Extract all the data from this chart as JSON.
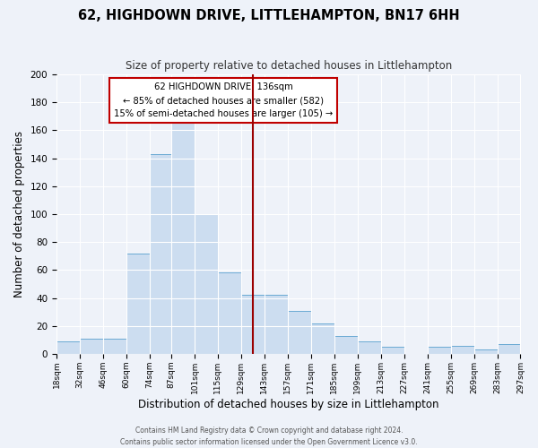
{
  "title": "62, HIGHDOWN DRIVE, LITTLEHAMPTON, BN17 6HH",
  "subtitle": "Size of property relative to detached houses in Littlehampton",
  "xlabel": "Distribution of detached houses by size in Littlehampton",
  "ylabel": "Number of detached properties",
  "bin_edges": [
    18,
    32,
    46,
    60,
    74,
    87,
    101,
    115,
    129,
    143,
    157,
    171,
    185,
    199,
    213,
    227,
    241,
    255,
    269,
    283,
    297
  ],
  "bin_counts": [
    9,
    11,
    11,
    72,
    143,
    168,
    100,
    58,
    42,
    42,
    31,
    22,
    13,
    9,
    5,
    0,
    5,
    6,
    3,
    7
  ],
  "bar_color": "#ccddf0",
  "bar_edge_color": "#6aaad4",
  "vline_x": 136,
  "vline_color": "#9b0000",
  "ylim": [
    0,
    200
  ],
  "yticks": [
    0,
    20,
    40,
    60,
    80,
    100,
    120,
    140,
    160,
    180,
    200
  ],
  "annotation_title": "62 HIGHDOWN DRIVE: 136sqm",
  "annotation_line1": "← 85% of detached houses are smaller (582)",
  "annotation_line2": "15% of semi-detached houses are larger (105) →",
  "annotation_box_color": "#ffffff",
  "annotation_box_edge": "#c00000",
  "footer_line1": "Contains HM Land Registry data © Crown copyright and database right 2024.",
  "footer_line2": "Contains public sector information licensed under the Open Government Licence v3.0.",
  "bg_color": "#eef2f9",
  "plot_bg_color": "#eef2f9",
  "grid_color": "#ffffff",
  "title_fontsize": 10.5,
  "subtitle_fontsize": 8.5,
  "xlabel_fontsize": 8.5,
  "ylabel_fontsize": 8.5,
  "footer_fontsize": 5.5,
  "tick_labels": [
    "18sqm",
    "32sqm",
    "46sqm",
    "60sqm",
    "74sqm",
    "87sqm",
    "101sqm",
    "115sqm",
    "129sqm",
    "143sqm",
    "157sqm",
    "171sqm",
    "185sqm",
    "199sqm",
    "213sqm",
    "227sqm",
    "241sqm",
    "255sqm",
    "269sqm",
    "283sqm",
    "297sqm"
  ]
}
